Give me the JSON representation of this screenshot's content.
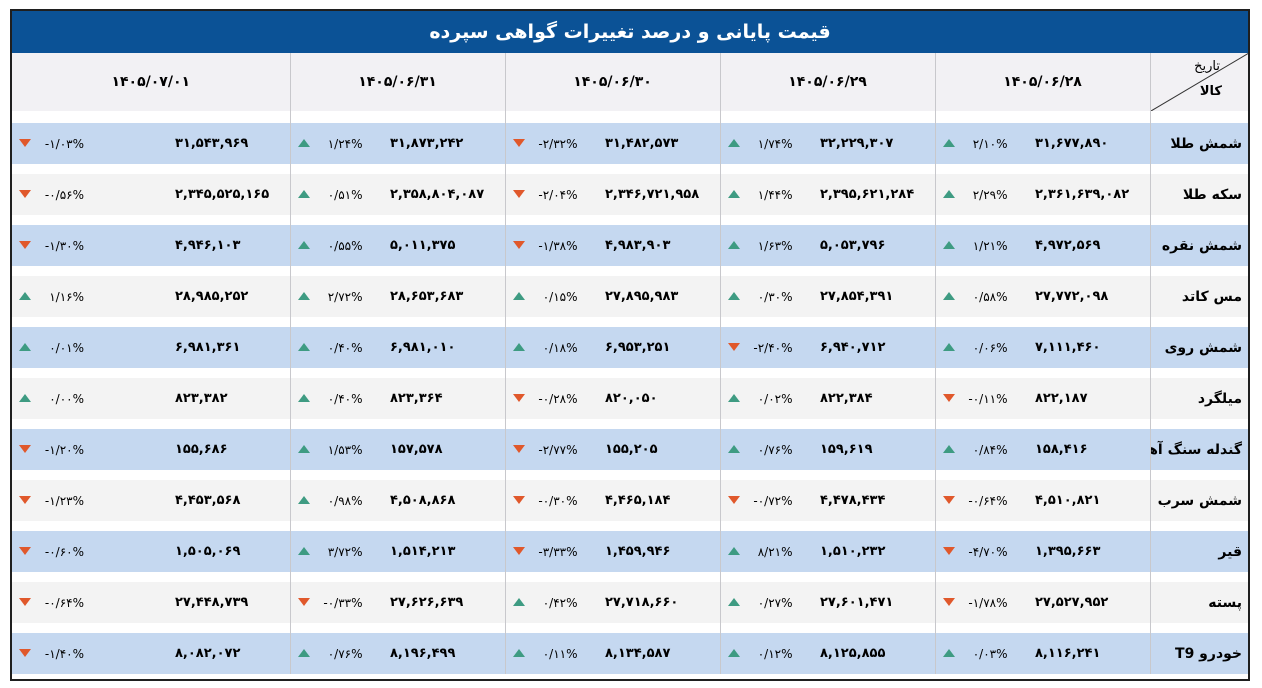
{
  "title": "قیمت پایانی و درصد تغییرات گواهی سپرده",
  "header": {
    "corner_date": "تاریخ",
    "corner_good": "کالا",
    "dates": [
      "۱۴۰۵/۰۶/۲۸",
      "۱۴۰۵/۰۶/۲۹",
      "۱۴۰۵/۰۶/۳۰",
      "۱۴۰۵/۰۶/۳۱",
      "۱۴۰۵/۰۷/۰۱"
    ]
  },
  "colors": {
    "up": "#3e9b82",
    "down": "#e0582b",
    "title_bg": "#0b5296",
    "row_alt": "#c5d8f0",
    "row_plain": "#f3f3f3"
  },
  "rows": [
    {
      "name": "شمش طلا",
      "cells": [
        {
          "price": "۳۱,۶۷۷,۸۹۰",
          "pct": "۲/۱۰%",
          "dir": "up"
        },
        {
          "price": "۳۲,۲۲۹,۳۰۷",
          "pct": "۱/۷۴%",
          "dir": "up"
        },
        {
          "price": "۳۱,۴۸۲,۵۷۳",
          "pct": "-۲/۳۲%",
          "dir": "down"
        },
        {
          "price": "۳۱,۸۷۳,۲۴۲",
          "pct": "۱/۲۴%",
          "dir": "up"
        },
        {
          "price": "۳۱,۵۴۳,۹۶۹",
          "pct": "-۱/۰۳%",
          "dir": "down"
        }
      ]
    },
    {
      "name": "سکه طلا",
      "cells": [
        {
          "price": "۲,۳۶۱,۶۳۹,۰۸۲",
          "pct": "۲/۲۹%",
          "dir": "up"
        },
        {
          "price": "۲,۳۹۵,۶۲۱,۲۸۴",
          "pct": "۱/۴۴%",
          "dir": "up"
        },
        {
          "price": "۲,۳۴۶,۷۲۱,۹۵۸",
          "pct": "-۲/۰۴%",
          "dir": "down"
        },
        {
          "price": "۲,۳۵۸,۸۰۴,۰۸۷",
          "pct": "۰/۵۱%",
          "dir": "up"
        },
        {
          "price": "۲,۳۴۵,۵۲۵,۱۶۵",
          "pct": "-۰/۵۶%",
          "dir": "down"
        }
      ]
    },
    {
      "name": "شمش نقره",
      "cells": [
        {
          "price": "۴,۹۷۲,۵۶۹",
          "pct": "۱/۲۱%",
          "dir": "up"
        },
        {
          "price": "۵,۰۵۳,۷۹۶",
          "pct": "۱/۶۳%",
          "dir": "up"
        },
        {
          "price": "۴,۹۸۳,۹۰۳",
          "pct": "-۱/۳۸%",
          "dir": "down"
        },
        {
          "price": "۵,۰۱۱,۳۷۵",
          "pct": "۰/۵۵%",
          "dir": "up"
        },
        {
          "price": "۴,۹۴۶,۱۰۳",
          "pct": "-۱/۳۰%",
          "dir": "down"
        }
      ]
    },
    {
      "name": "مس کاتد",
      "cells": [
        {
          "price": "۲۷,۷۷۲,۰۹۸",
          "pct": "۰/۵۸%",
          "dir": "up"
        },
        {
          "price": "۲۷,۸۵۴,۳۹۱",
          "pct": "۰/۳۰%",
          "dir": "up"
        },
        {
          "price": "۲۷,۸۹۵,۹۸۳",
          "pct": "۰/۱۵%",
          "dir": "up"
        },
        {
          "price": "۲۸,۶۵۳,۶۸۳",
          "pct": "۲/۷۲%",
          "dir": "up"
        },
        {
          "price": "۲۸,۹۸۵,۲۵۲",
          "pct": "۱/۱۶%",
          "dir": "up"
        }
      ]
    },
    {
      "name": "شمش روی",
      "cells": [
        {
          "price": "۷,۱۱۱,۴۶۰",
          "pct": "۰/۰۶%",
          "dir": "up"
        },
        {
          "price": "۶,۹۴۰,۷۱۲",
          "pct": "-۲/۴۰%",
          "dir": "down"
        },
        {
          "price": "۶,۹۵۳,۲۵۱",
          "pct": "۰/۱۸%",
          "dir": "up"
        },
        {
          "price": "۶,۹۸۱,۰۱۰",
          "pct": "۰/۴۰%",
          "dir": "up"
        },
        {
          "price": "۶,۹۸۱,۳۶۱",
          "pct": "۰/۰۱%",
          "dir": "up"
        }
      ]
    },
    {
      "name": "میلگرد",
      "cells": [
        {
          "price": "۸۲۲,۱۸۷",
          "pct": "-۰/۱۱%",
          "dir": "down"
        },
        {
          "price": "۸۲۲,۳۸۴",
          "pct": "۰/۰۲%",
          "dir": "up"
        },
        {
          "price": "۸۲۰,۰۵۰",
          "pct": "-۰/۲۸%",
          "dir": "down"
        },
        {
          "price": "۸۲۳,۳۶۴",
          "pct": "۰/۴۰%",
          "dir": "up"
        },
        {
          "price": "۸۲۳,۳۸۲",
          "pct": "۰/۰۰%",
          "dir": "up"
        }
      ]
    },
    {
      "name": "گندله سنگ آهن",
      "cells": [
        {
          "price": "۱۵۸,۴۱۶",
          "pct": "۰/۸۴%",
          "dir": "up"
        },
        {
          "price": "۱۵۹,۶۱۹",
          "pct": "۰/۷۶%",
          "dir": "up"
        },
        {
          "price": "۱۵۵,۲۰۵",
          "pct": "-۲/۷۷%",
          "dir": "down"
        },
        {
          "price": "۱۵۷,۵۷۸",
          "pct": "۱/۵۳%",
          "dir": "up"
        },
        {
          "price": "۱۵۵,۶۸۶",
          "pct": "-۱/۲۰%",
          "dir": "down"
        }
      ]
    },
    {
      "name": "شمش سرب",
      "cells": [
        {
          "price": "۴,۵۱۰,۸۲۱",
          "pct": "-۰/۶۴%",
          "dir": "down"
        },
        {
          "price": "۴,۴۷۸,۴۳۴",
          "pct": "-۰/۷۲%",
          "dir": "down"
        },
        {
          "price": "۴,۴۶۵,۱۸۴",
          "pct": "-۰/۳۰%",
          "dir": "down"
        },
        {
          "price": "۴,۵۰۸,۸۶۸",
          "pct": "۰/۹۸%",
          "dir": "up"
        },
        {
          "price": "۴,۴۵۳,۵۶۸",
          "pct": "-۱/۲۳%",
          "dir": "down"
        }
      ]
    },
    {
      "name": "قیر",
      "cells": [
        {
          "price": "۱,۳۹۵,۶۶۳",
          "pct": "-۴/۷۰%",
          "dir": "down"
        },
        {
          "price": "۱,۵۱۰,۲۳۲",
          "pct": "۸/۲۱%",
          "dir": "up"
        },
        {
          "price": "۱,۴۵۹,۹۴۶",
          "pct": "-۳/۳۳%",
          "dir": "down"
        },
        {
          "price": "۱,۵۱۴,۲۱۳",
          "pct": "۳/۷۲%",
          "dir": "up"
        },
        {
          "price": "۱,۵۰۵,۰۶۹",
          "pct": "-۰/۶۰%",
          "dir": "down"
        }
      ]
    },
    {
      "name": "پسته",
      "cells": [
        {
          "price": "۲۷,۵۲۷,۹۵۲",
          "pct": "-۱/۷۸%",
          "dir": "down"
        },
        {
          "price": "۲۷,۶۰۱,۴۷۱",
          "pct": "۰/۲۷%",
          "dir": "up"
        },
        {
          "price": "۲۷,۷۱۸,۶۶۰",
          "pct": "۰/۴۲%",
          "dir": "up"
        },
        {
          "price": "۲۷,۶۲۶,۶۳۹",
          "pct": "-۰/۳۳%",
          "dir": "down"
        },
        {
          "price": "۲۷,۴۴۸,۷۳۹",
          "pct": "-۰/۶۴%",
          "dir": "down"
        }
      ]
    },
    {
      "name": "خودرو T9",
      "cells": [
        {
          "price": "۸,۱۱۶,۲۴۱",
          "pct": "۰/۰۳%",
          "dir": "up"
        },
        {
          "price": "۸,۱۲۵,۸۵۵",
          "pct": "۰/۱۲%",
          "dir": "up"
        },
        {
          "price": "۸,۱۳۴,۵۸۷",
          "pct": "۰/۱۱%",
          "dir": "up"
        },
        {
          "price": "۸,۱۹۶,۴۹۹",
          "pct": "۰/۷۶%",
          "dir": "up"
        },
        {
          "price": "۸,۰۸۲,۰۷۲",
          "pct": "-۱/۴۰%",
          "dir": "down"
        }
      ]
    }
  ]
}
